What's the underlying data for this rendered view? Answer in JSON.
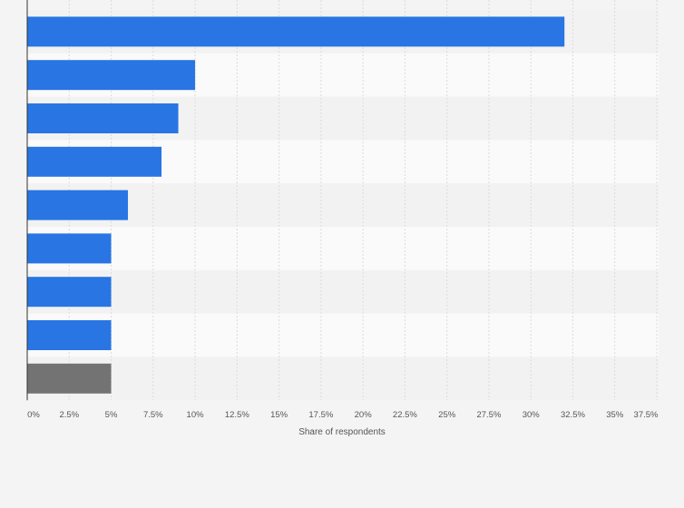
{
  "chart_data": {
    "type": "bar",
    "orientation": "horizontal",
    "title": "",
    "xlabel": "Share of respondents",
    "ylabel": "",
    "xlim": [
      0,
      37.5
    ],
    "x_ticks": [
      0,
      2.5,
      5,
      7.5,
      10,
      12.5,
      15,
      17.5,
      20,
      22.5,
      25,
      27.5,
      30,
      32.5,
      35,
      37.5
    ],
    "x_tick_labels": [
      "0%",
      "2.5%",
      "5%",
      "7.5%",
      "10%",
      "12.5%",
      "15%",
      "17.5%",
      "20%",
      "22.5%",
      "25%",
      "27.5%",
      "30%",
      "32.5%",
      "35%",
      "37.5%"
    ],
    "categories": [
      "",
      "",
      "",
      "",
      "",
      "",
      "",
      "",
      ""
    ],
    "values": [
      32,
      10,
      9,
      8,
      6,
      5,
      5,
      5,
      5
    ],
    "colors": [
      "#2875e3",
      "#2875e3",
      "#2875e3",
      "#2875e3",
      "#2875e3",
      "#2875e3",
      "#2875e3",
      "#2875e3",
      "#737373"
    ],
    "grid": true,
    "legend": "none"
  }
}
